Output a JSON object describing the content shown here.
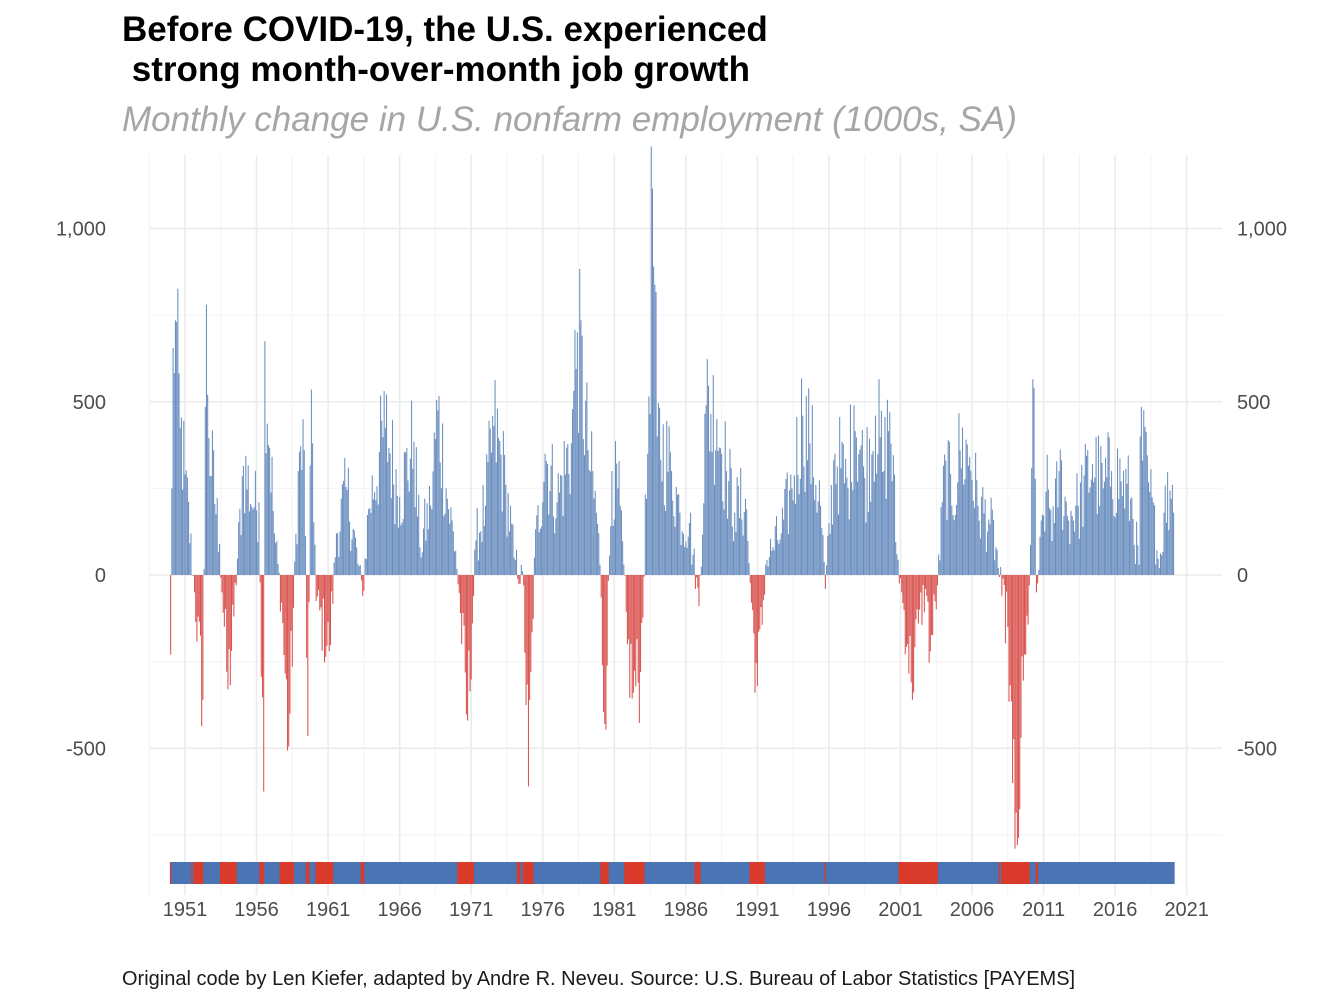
{
  "title": "Before COVID-19, the U.S. experienced\n strong month-over-month job growth",
  "subtitle": "Monthly change in U.S. nonfarm employment (1000s, SA)",
  "caption": "Original code by Len Kiefer, adapted by Andre R. Neveu. Source: U.S. Bureau of Labor Statistics [PAYEMS]",
  "colors": {
    "positive": "#6a8ebf",
    "negative": "#d9534f",
    "strip_positive": "#4a74b4",
    "strip_negative": "#d93a2b",
    "grid": "#ebebeb",
    "text": "#4d4d4d"
  },
  "chart_data": {
    "type": "bar",
    "x_unit": "month",
    "x_start": "1950-01",
    "x_end": "2020-02",
    "ylim": [
      -880,
      1160
    ],
    "y_ticks": [
      -500,
      0,
      500,
      1000
    ],
    "y_tick_labels": [
      "-500",
      "0",
      "500",
      "1,000"
    ],
    "x_ticks": [
      1951,
      1956,
      1961,
      1966,
      1971,
      1976,
      1981,
      1986,
      1991,
      1996,
      2001,
      2006,
      2011,
      2016,
      2021
    ],
    "x_tick_labels": [
      "1951",
      "1956",
      "1961",
      "1966",
      "1971",
      "1976",
      "1981",
      "1986",
      "1991",
      "1996",
      "2001",
      "2006",
      "2011",
      "2016",
      "2021"
    ],
    "secondary_y_axis": true,
    "grid": true,
    "sign_strip": true,
    "legend": "none",
    "anchor_points": [
      {
        "date": "1950-01",
        "value": -230
      },
      {
        "date": "1950-03",
        "value": 655
      },
      {
        "date": "1950-05",
        "value": 735
      },
      {
        "date": "1950-09",
        "value": 425
      },
      {
        "date": "1951-01",
        "value": 290
      },
      {
        "date": "1951-09",
        "value": -50
      },
      {
        "date": "1952-04",
        "value": -360
      },
      {
        "date": "1952-07",
        "value": 780
      },
      {
        "date": "1952-09",
        "value": 395
      },
      {
        "date": "1953-06",
        "value": 90
      },
      {
        "date": "1954-01",
        "value": -330
      },
      {
        "date": "1954-06",
        "value": -120
      },
      {
        "date": "1955-02",
        "value": 315
      },
      {
        "date": "1955-11",
        "value": 195
      },
      {
        "date": "1956-03",
        "value": 210
      },
      {
        "date": "1956-07",
        "value": -625
      },
      {
        "date": "1956-08",
        "value": 675
      },
      {
        "date": "1957-04",
        "value": 120
      },
      {
        "date": "1957-10",
        "value": -80
      },
      {
        "date": "1958-04",
        "value": -495
      },
      {
        "date": "1958-12",
        "value": 300
      },
      {
        "date": "1959-05",
        "value": 360
      },
      {
        "date": "1959-08",
        "value": -465
      },
      {
        "date": "1959-11",
        "value": 535
      },
      {
        "date": "1960-03",
        "value": -75
      },
      {
        "date": "1961-02",
        "value": -220
      },
      {
        "date": "1961-08",
        "value": 120
      },
      {
        "date": "1962-05",
        "value": 245
      },
      {
        "date": "1963-06",
        "value": -60
      },
      {
        "date": "1963-11",
        "value": 190
      },
      {
        "date": "1965-01",
        "value": 425
      },
      {
        "date": "1966-01",
        "value": 225
      },
      {
        "date": "1967-01",
        "value": 385
      },
      {
        "date": "1967-06",
        "value": 80
      },
      {
        "date": "1968-03",
        "value": 200
      },
      {
        "date": "1968-09",
        "value": 475
      },
      {
        "date": "1969-05",
        "value": 220
      },
      {
        "date": "1969-12",
        "value": 70
      },
      {
        "date": "1970-04",
        "value": -110
      },
      {
        "date": "1970-10",
        "value": -420
      },
      {
        "date": "1971-05",
        "value": 100
      },
      {
        "date": "1972-01",
        "value": 200
      },
      {
        "date": "1972-08",
        "value": 430
      },
      {
        "date": "1973-06",
        "value": 260
      },
      {
        "date": "1974-01",
        "value": 50
      },
      {
        "date": "1974-09",
        "value": -30
      },
      {
        "date": "1975-01",
        "value": -610
      },
      {
        "date": "1975-06",
        "value": 50
      },
      {
        "date": "1976-03",
        "value": 350
      },
      {
        "date": "1977-01",
        "value": 210
      },
      {
        "date": "1978-01",
        "value": 380
      },
      {
        "date": "1978-06",
        "value": 700
      },
      {
        "date": "1979-03",
        "value": 360
      },
      {
        "date": "1979-12",
        "value": 120
      },
      {
        "date": "1980-05",
        "value": -430
      },
      {
        "date": "1980-11",
        "value": 300
      },
      {
        "date": "1981-06",
        "value": 200
      },
      {
        "date": "1981-12",
        "value": -200
      },
      {
        "date": "1982-05",
        "value": -340
      },
      {
        "date": "1982-11",
        "value": -280
      },
      {
        "date": "1983-05",
        "value": 350
      },
      {
        "date": "1983-09",
        "value": 1115
      },
      {
        "date": "1984-01",
        "value": 400
      },
      {
        "date": "1985-01",
        "value": 300
      },
      {
        "date": "1985-08",
        "value": 180
      },
      {
        "date": "1986-04",
        "value": 150
      },
      {
        "date": "1986-12",
        "value": -90
      },
      {
        "date": "1987-06",
        "value": 490
      },
      {
        "date": "1988-03",
        "value": 450
      },
      {
        "date": "1988-11",
        "value": 300
      },
      {
        "date": "1989-06",
        "value": 180
      },
      {
        "date": "1990-03",
        "value": 220
      },
      {
        "date": "1990-08",
        "value": -80
      },
      {
        "date": "1991-01",
        "value": -320
      },
      {
        "date": "1991-08",
        "value": 30
      },
      {
        "date": "1992-02",
        "value": 80
      },
      {
        "date": "1992-09",
        "value": 120
      },
      {
        "date": "1993-06",
        "value": 250
      },
      {
        "date": "1994-03",
        "value": 460
      },
      {
        "date": "1994-09",
        "value": 380
      },
      {
        "date": "1995-06",
        "value": 200
      },
      {
        "date": "1995-10",
        "value": -40
      },
      {
        "date": "1996-06",
        "value": 350
      },
      {
        "date": "1997-05",
        "value": 250
      },
      {
        "date": "1997-10",
        "value": 490
      },
      {
        "date": "1998-07",
        "value": 280
      },
      {
        "date": "1999-04",
        "value": 460
      },
      {
        "date": "1999-11",
        "value": 300
      },
      {
        "date": "2000-04",
        "value": 470
      },
      {
        "date": "2000-10",
        "value": 60
      },
      {
        "date": "2001-02",
        "value": -50
      },
      {
        "date": "2001-07",
        "value": -200
      },
      {
        "date": "2001-10",
        "value": -310
      },
      {
        "date": "2002-04",
        "value": -140
      },
      {
        "date": "2002-10",
        "value": -40
      },
      {
        "date": "2003-02",
        "value": -220
      },
      {
        "date": "2003-08",
        "value": -30
      },
      {
        "date": "2004-03",
        "value": 330
      },
      {
        "date": "2004-08",
        "value": 200
      },
      {
        "date": "2005-03",
        "value": 360
      },
      {
        "date": "2005-11",
        "value": 340
      },
      {
        "date": "2006-06",
        "value": 200
      },
      {
        "date": "2007-03",
        "value": 160
      },
      {
        "date": "2007-09",
        "value": 80
      },
      {
        "date": "2008-02",
        "value": -60
      },
      {
        "date": "2008-07",
        "value": -150
      },
      {
        "date": "2008-11",
        "value": -600
      },
      {
        "date": "2009-01",
        "value": -790
      },
      {
        "date": "2009-03",
        "value": -780
      },
      {
        "date": "2009-06",
        "value": -470
      },
      {
        "date": "2009-10",
        "value": -230
      },
      {
        "date": "2010-01",
        "value": -30
      },
      {
        "date": "2010-05",
        "value": 540
      },
      {
        "date": "2010-07",
        "value": -50
      },
      {
        "date": "2011-03",
        "value": 240
      },
      {
        "date": "2011-10",
        "value": 150
      },
      {
        "date": "2012-02",
        "value": 300
      },
      {
        "date": "2012-09",
        "value": 170
      },
      {
        "date": "2013-06",
        "value": 200
      },
      {
        "date": "2014-06",
        "value": 320
      },
      {
        "date": "2015-03",
        "value": 250
      },
      {
        "date": "2015-10",
        "value": 300
      },
      {
        "date": "2016-06",
        "value": 270
      },
      {
        "date": "2017-02",
        "value": 220
      },
      {
        "date": "2017-09",
        "value": 30
      },
      {
        "date": "2017-10",
        "value": 400
      },
      {
        "date": "2018-06",
        "value": 240
      },
      {
        "date": "2019-02",
        "value": 20
      },
      {
        "date": "2019-06",
        "value": 180
      },
      {
        "date": "2020-01",
        "value": 260
      },
      {
        "date": "2020-02",
        "value": 180
      }
    ]
  }
}
